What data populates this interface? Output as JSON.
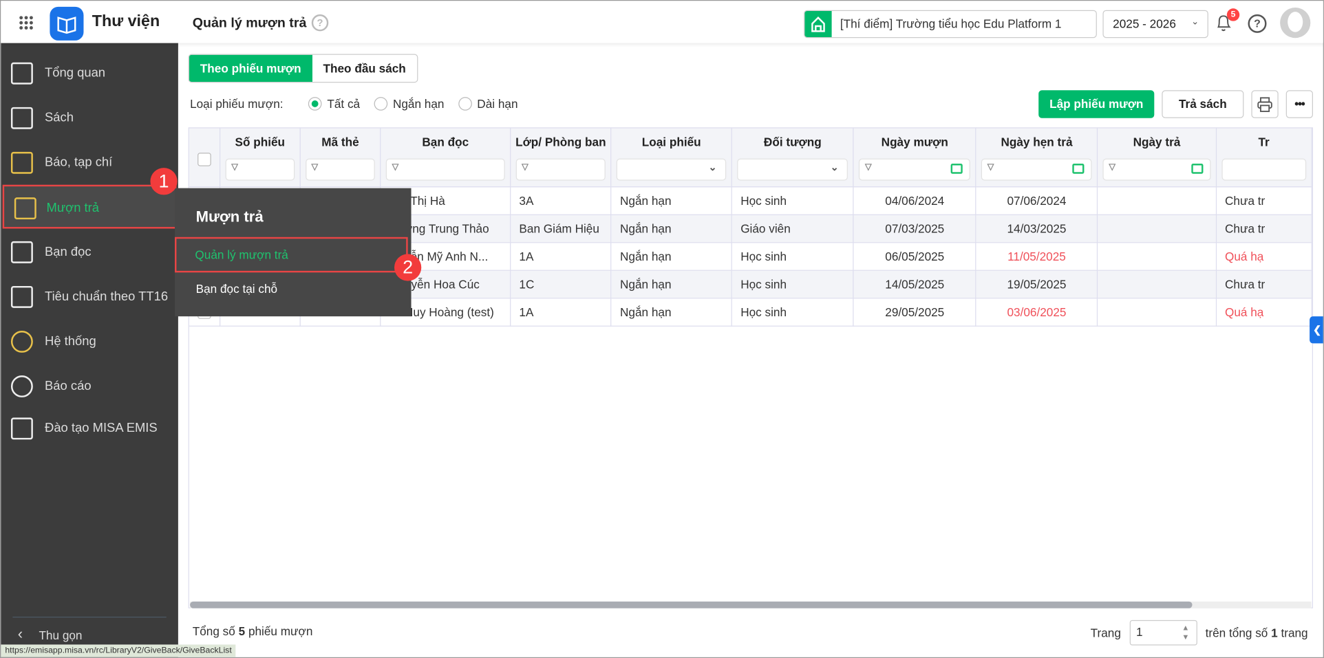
{
  "header": {
    "app_title": "Thư viện",
    "page_title": "Quản lý mượn trả",
    "school": "[Thí điểm] Trường tiểu học Edu Platform 1",
    "year": "2025 - 2026",
    "notification_count": "5",
    "help_icon": "?",
    "accent": "#00b96b"
  },
  "sidebar": {
    "items": [
      {
        "label": "Tổng quan",
        "icon": "bar-chart-icon"
      },
      {
        "label": "Sách",
        "icon": "book-icon"
      },
      {
        "label": "Báo, tạp chí",
        "icon": "newspaper-icon"
      },
      {
        "label": "Mượn trả",
        "icon": "borrow-return-icon",
        "active": true
      },
      {
        "label": "Bạn đọc",
        "icon": "reader-icon"
      },
      {
        "label": "Tiêu chuẩn theo TT16",
        "icon": "checklist-icon"
      },
      {
        "label": "Hệ thống",
        "icon": "gear-icon"
      },
      {
        "label": "Báo cáo",
        "icon": "pie-chart-icon"
      },
      {
        "label": "Đào tạo MISA EMIS",
        "icon": "cube-icon"
      }
    ],
    "collapse": "Thu gọn"
  },
  "popup": {
    "title": "Mượn trả",
    "items": [
      "Quản lý mượn trả",
      "Bạn đọc tại chỗ"
    ]
  },
  "markers": [
    "1",
    "2"
  ],
  "tabs": [
    "Theo phiếu mượn",
    "Theo đầu sách"
  ],
  "filter": {
    "label": "Loại phiếu mượn:",
    "options": [
      "Tất cả",
      "Ngắn hạn",
      "Dài hạn"
    ],
    "selected": "Tất cả"
  },
  "actions": {
    "create": "Lập phiếu mượn",
    "return": "Trả sách"
  },
  "table": {
    "columns": [
      "Số phiếu",
      "Mã thẻ",
      "Bạn đọc",
      "Lớp/ Phòng ban",
      "Loại phiếu",
      "Đối tượng",
      "Ngày mượn",
      "Ngày hẹn trả",
      "Ngày trả",
      "Tr"
    ],
    "rows": [
      {
        "reader": "i Thị Hà",
        "class": "3A",
        "type": "Ngắn hạn",
        "target": "Học sinh",
        "borrow": "04/06/2024",
        "due": "07/06/2024",
        "returned": "",
        "status": "Chưa tr",
        "overdue": false
      },
      {
        "reader": "ơng Trung Thảo",
        "class": "Ban Giám Hiệu",
        "type": "Ngắn hạn",
        "target": "Giáo viên",
        "borrow": "07/03/2025",
        "due": "14/03/2025",
        "returned": "",
        "status": "Chưa tr",
        "overdue": false
      },
      {
        "reader": "yễn Mỹ Anh N...",
        "class": "1A",
        "type": "Ngắn hạn",
        "target": "Học sinh",
        "borrow": "06/05/2025",
        "due": "11/05/2025",
        "returned": "",
        "status": "Quá hạ",
        "overdue": true
      },
      {
        "reader": "uyễn Hoa Cúc",
        "class": "1C",
        "type": "Ngắn hạn",
        "target": "Học sinh",
        "borrow": "14/05/2025",
        "due": "19/05/2025",
        "returned": "",
        "status": "Chưa tr",
        "overdue": false
      },
      {
        "reader": "Huy Hoàng (test)",
        "class": "1A",
        "type": "Ngắn hạn",
        "target": "Học sinh",
        "borrow": "29/05/2025",
        "due": "03/06/2025",
        "returned": "",
        "status": "Quá hạ",
        "overdue": true
      }
    ]
  },
  "footer": {
    "total_prefix": "Tổng số ",
    "total": "5",
    "total_suffix": " phiếu mượn",
    "page_label": "Trang",
    "page": "1",
    "of_prefix": "trên tổng số ",
    "pages": "1",
    "of_suffix": " trang"
  },
  "status_url": "https://emisapp.misa.vn/rc/LibraryV2/GiveBack/GiveBackList"
}
